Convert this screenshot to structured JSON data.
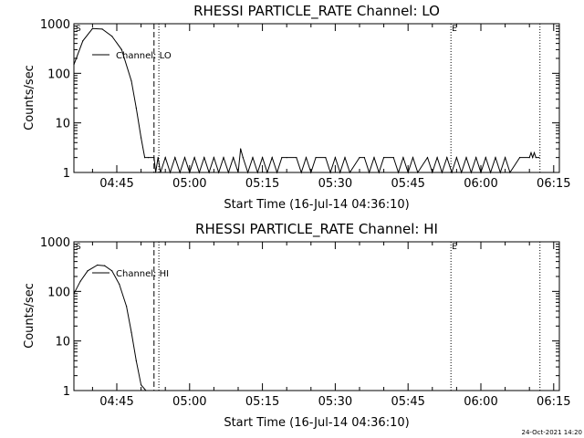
{
  "footer": {
    "timestamp": "24-Oct-2021 14:20"
  },
  "chart_data": [
    {
      "type": "line",
      "title": "RHESSI PARTICLE_RATE Channel: LO",
      "xlabel": "Start Time (16-Jul-14 04:36:10)",
      "ylabel": "Counts/sec",
      "ylog": true,
      "ylim": [
        1,
        1000
      ],
      "xlim": [
        "04:36:10",
        "06:16:10"
      ],
      "xticks": [
        "04:45",
        "05:00",
        "05:15",
        "05:30",
        "05:45",
        "06:00",
        "06:15"
      ],
      "yticks": [
        "1",
        "10",
        "100",
        "1000"
      ],
      "markers": {
        "start": "S",
        "end": "E"
      },
      "vlines": [
        {
          "t": "04:52:40",
          "style": "dashed"
        },
        {
          "t": "04:53:40",
          "style": "dotted"
        },
        {
          "t": "05:53:50",
          "style": "dotted"
        },
        {
          "t": "06:12:10",
          "style": "dotted"
        }
      ],
      "series": [
        {
          "name": "Channel: LO",
          "x": [
            "04:36:10",
            "04:38:00",
            "04:40:00",
            "04:42:00",
            "04:44:00",
            "04:46:00",
            "04:48:00",
            "04:49:00",
            "04:50:00",
            "04:50:45",
            "04:51:30",
            "04:52:40",
            "04:53:00",
            "04:53:30",
            "04:54:00",
            "04:55:00",
            "04:56:00",
            "04:57:00",
            "04:58:00",
            "04:59:00",
            "05:00:00",
            "05:01:00",
            "05:02:00",
            "05:03:00",
            "05:04:00",
            "05:05:00",
            "05:06:00",
            "05:07:00",
            "05:08:00",
            "05:09:00",
            "05:10:00",
            "05:10:30",
            "05:11:00",
            "05:12:00",
            "05:13:00",
            "05:14:00",
            "05:15:00",
            "05:16:00",
            "05:17:00",
            "05:18:00",
            "05:19:00",
            "05:20:00",
            "05:22:00",
            "05:23:00",
            "05:24:00",
            "05:25:00",
            "05:26:00",
            "05:28:00",
            "05:29:00",
            "05:30:00",
            "05:31:00",
            "05:32:00",
            "05:33:00",
            "05:35:00",
            "05:36:00",
            "05:37:00",
            "05:38:00",
            "05:39:00",
            "05:40:00",
            "05:42:00",
            "05:43:00",
            "05:44:00",
            "05:45:00",
            "05:46:00",
            "05:47:00",
            "05:49:00",
            "05:50:00",
            "05:51:00",
            "05:52:00",
            "05:53:00",
            "05:54:00",
            "05:55:00",
            "05:56:00",
            "05:57:00",
            "05:58:00",
            "05:59:00",
            "06:00:00",
            "06:01:00",
            "06:02:00",
            "06:03:00",
            "06:04:00",
            "06:05:00",
            "06:06:00",
            "06:08:00",
            "06:10:00",
            "06:10:20",
            "06:10:40",
            "06:11:00",
            "06:11:20",
            "06:12:00"
          ],
          "values": [
            150,
            450,
            800,
            780,
            560,
            300,
            70,
            20,
            5,
            2,
            2,
            2,
            1,
            2,
            1,
            2,
            1,
            2,
            1,
            2,
            1,
            2,
            1,
            2,
            1,
            2,
            1,
            2,
            1,
            2,
            1,
            3,
            2,
            1,
            2,
            1,
            2,
            1,
            2,
            1,
            2,
            2,
            2,
            1,
            2,
            1,
            2,
            2,
            1,
            2,
            1,
            2,
            1,
            2,
            2,
            1,
            2,
            1,
            2,
            2,
            1,
            2,
            1,
            2,
            1,
            2,
            1,
            2,
            1,
            2,
            1,
            2,
            1,
            2,
            1,
            2,
            1,
            2,
            1,
            2,
            1,
            2,
            1,
            2,
            2,
            2.5,
            2,
            2.5,
            2,
            2
          ]
        }
      ]
    },
    {
      "type": "line",
      "title": "RHESSI PARTICLE_RATE Channel: HI",
      "xlabel": "Start Time (16-Jul-14 04:36:10)",
      "ylabel": "Counts/sec",
      "ylog": true,
      "ylim": [
        1,
        1000
      ],
      "xlim": [
        "04:36:10",
        "06:16:10"
      ],
      "xticks": [
        "04:45",
        "05:00",
        "05:15",
        "05:30",
        "05:45",
        "06:00",
        "06:15"
      ],
      "yticks": [
        "1",
        "10",
        "100",
        "1000"
      ],
      "markers": {
        "start": "S",
        "end": "E"
      },
      "vlines": [
        {
          "t": "04:52:40",
          "style": "dashed"
        },
        {
          "t": "04:53:40",
          "style": "dotted"
        },
        {
          "t": "05:53:50",
          "style": "dotted"
        },
        {
          "t": "06:12:10",
          "style": "dotted"
        }
      ],
      "series": [
        {
          "name": "Channel: HI",
          "x": [
            "04:36:10",
            "04:37:30",
            "04:39:00",
            "04:41:00",
            "04:42:30",
            "04:44:00",
            "04:45:30",
            "04:47:00",
            "04:48:00",
            "04:49:00",
            "04:50:00",
            "04:51:00"
          ],
          "values": [
            90,
            160,
            260,
            340,
            330,
            260,
            140,
            50,
            15,
            4,
            1.3,
            1
          ]
        }
      ]
    }
  ]
}
